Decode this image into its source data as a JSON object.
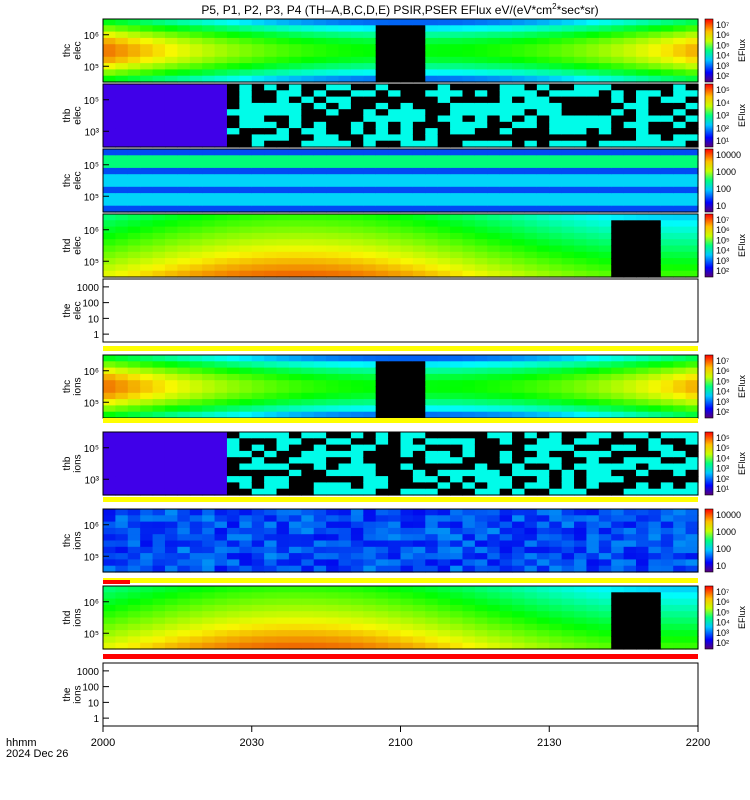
{
  "title": "P5, P1, P2, P3, P4 (TH–A,B,C,D,E) PSIR,PSER EFlux eV/(eV*cm",
  "title_sup": "2",
  "title_end": "*sec*sr)",
  "footer": {
    "line1": "hhmm",
    "line2": "2024 Dec 26"
  },
  "colors": {
    "black": "#000000",
    "red": "#ff0000",
    "yellow": "#ffff00",
    "blue": "#0000ff"
  },
  "chart_data": {
    "type": "heatmap",
    "x_ticks": [
      "2000",
      "2030",
      "2100",
      "2130",
      "2200"
    ],
    "panels": [
      {
        "ylabel": [
          "thc",
          "elec"
        ],
        "ytick_labels": [
          "10⁶",
          "10⁵"
        ],
        "colorbar_ticks": [
          "10⁷",
          "10⁶",
          "10⁵",
          "10⁴",
          "10³",
          "10²"
        ],
        "colorbar_label": "EFlux",
        "style": "mag",
        "gap_start_hhmm": "20:55",
        "gap_end_hhmm": "21:05"
      },
      {
        "ylabel": [
          "thb",
          "elec"
        ],
        "ytick_labels": [
          "10⁵",
          "10³"
        ],
        "colorbar_ticks": [
          "10⁵",
          "10⁴",
          "10³",
          "10²",
          "10¹"
        ],
        "colorbar_label": "EFlux",
        "style": "noise"
      },
      {
        "ylabel": [
          "thc",
          "elec"
        ],
        "ytick_labels": [
          "10⁵",
          "10⁵"
        ],
        "colorbar_ticks": [
          "10000",
          "1000",
          "100",
          "10"
        ],
        "colorbar_label": "",
        "style": "bands"
      },
      {
        "ylabel": [
          "thd",
          "elec"
        ],
        "ytick_labels": [
          "10⁶",
          "10⁵"
        ],
        "colorbar_ticks": [
          "10⁷",
          "10⁶",
          "10⁵",
          "10⁴",
          "10³",
          "10²"
        ],
        "colorbar_label": "EFlux",
        "style": "warm",
        "gap_start_hhmm": "21:43",
        "gap_end_hhmm": "21:52"
      },
      {
        "ylabel": [
          "the",
          "elec"
        ],
        "ytick_labels": [
          "1000",
          "100",
          "10",
          "1"
        ],
        "colorbar_ticks": [],
        "colorbar_label": "",
        "style": "empty"
      },
      {
        "ylabel": [
          "thc",
          "ions"
        ],
        "ytick_labels": [
          "10⁶",
          "10⁵"
        ],
        "colorbar_ticks": [
          "10⁷",
          "10⁶",
          "10⁵",
          "10⁴",
          "10³",
          "10²"
        ],
        "colorbar_label": "EFlux",
        "style": "mag",
        "gap_start_hhmm": "20:55",
        "gap_end_hhmm": "21:05"
      },
      {
        "ylabel": [
          "thb",
          "ions"
        ],
        "ytick_labels": [
          "10⁵",
          "10³"
        ],
        "colorbar_ticks": [
          "10⁵",
          "10⁵",
          "10⁴",
          "10³",
          "10²",
          "10¹"
        ],
        "colorbar_label": "EFlux",
        "style": "noise"
      },
      {
        "ylabel": [
          "thc",
          "ions"
        ],
        "ytick_labels": [
          "10⁶",
          "10⁵"
        ],
        "colorbar_ticks": [
          "10000",
          "1000",
          "100",
          "10"
        ],
        "colorbar_label": "",
        "style": "noisebands"
      },
      {
        "ylabel": [
          "thd",
          "ions"
        ],
        "ytick_labels": [
          "10⁶",
          "10⁵"
        ],
        "colorbar_ticks": [
          "10⁷",
          "10⁶",
          "10⁵",
          "10⁴",
          "10³",
          "10²"
        ],
        "colorbar_label": "EFlux",
        "style": "warm",
        "gap_start_hhmm": "21:43",
        "gap_end_hhmm": "21:52"
      },
      {
        "ylabel": [
          "the",
          "ions"
        ],
        "ytick_labels": [
          "1000",
          "100",
          "10",
          "1"
        ],
        "colorbar_ticks": [],
        "colorbar_label": "",
        "style": "empty"
      }
    ]
  }
}
